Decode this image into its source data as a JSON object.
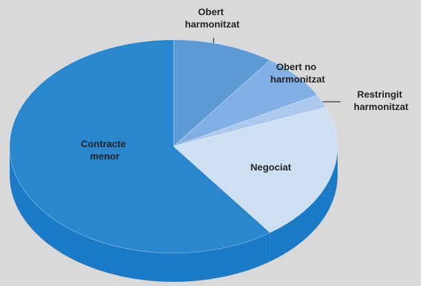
{
  "chart_data": {
    "type": "pie3d",
    "categories": [
      "Obert harmonitzat",
      "Obert no harmonitzat",
      "Restringit harmonitzat",
      "Negociat",
      "Contracte menor"
    ],
    "values": [
      10,
      7,
      2,
      21,
      60
    ],
    "colors": [
      "#5d9bd6",
      "#80b0e4",
      "#abc9ec",
      "#cfdff2",
      "#2b87cd"
    ],
    "depth_color": "#1b7bc6"
  }
}
